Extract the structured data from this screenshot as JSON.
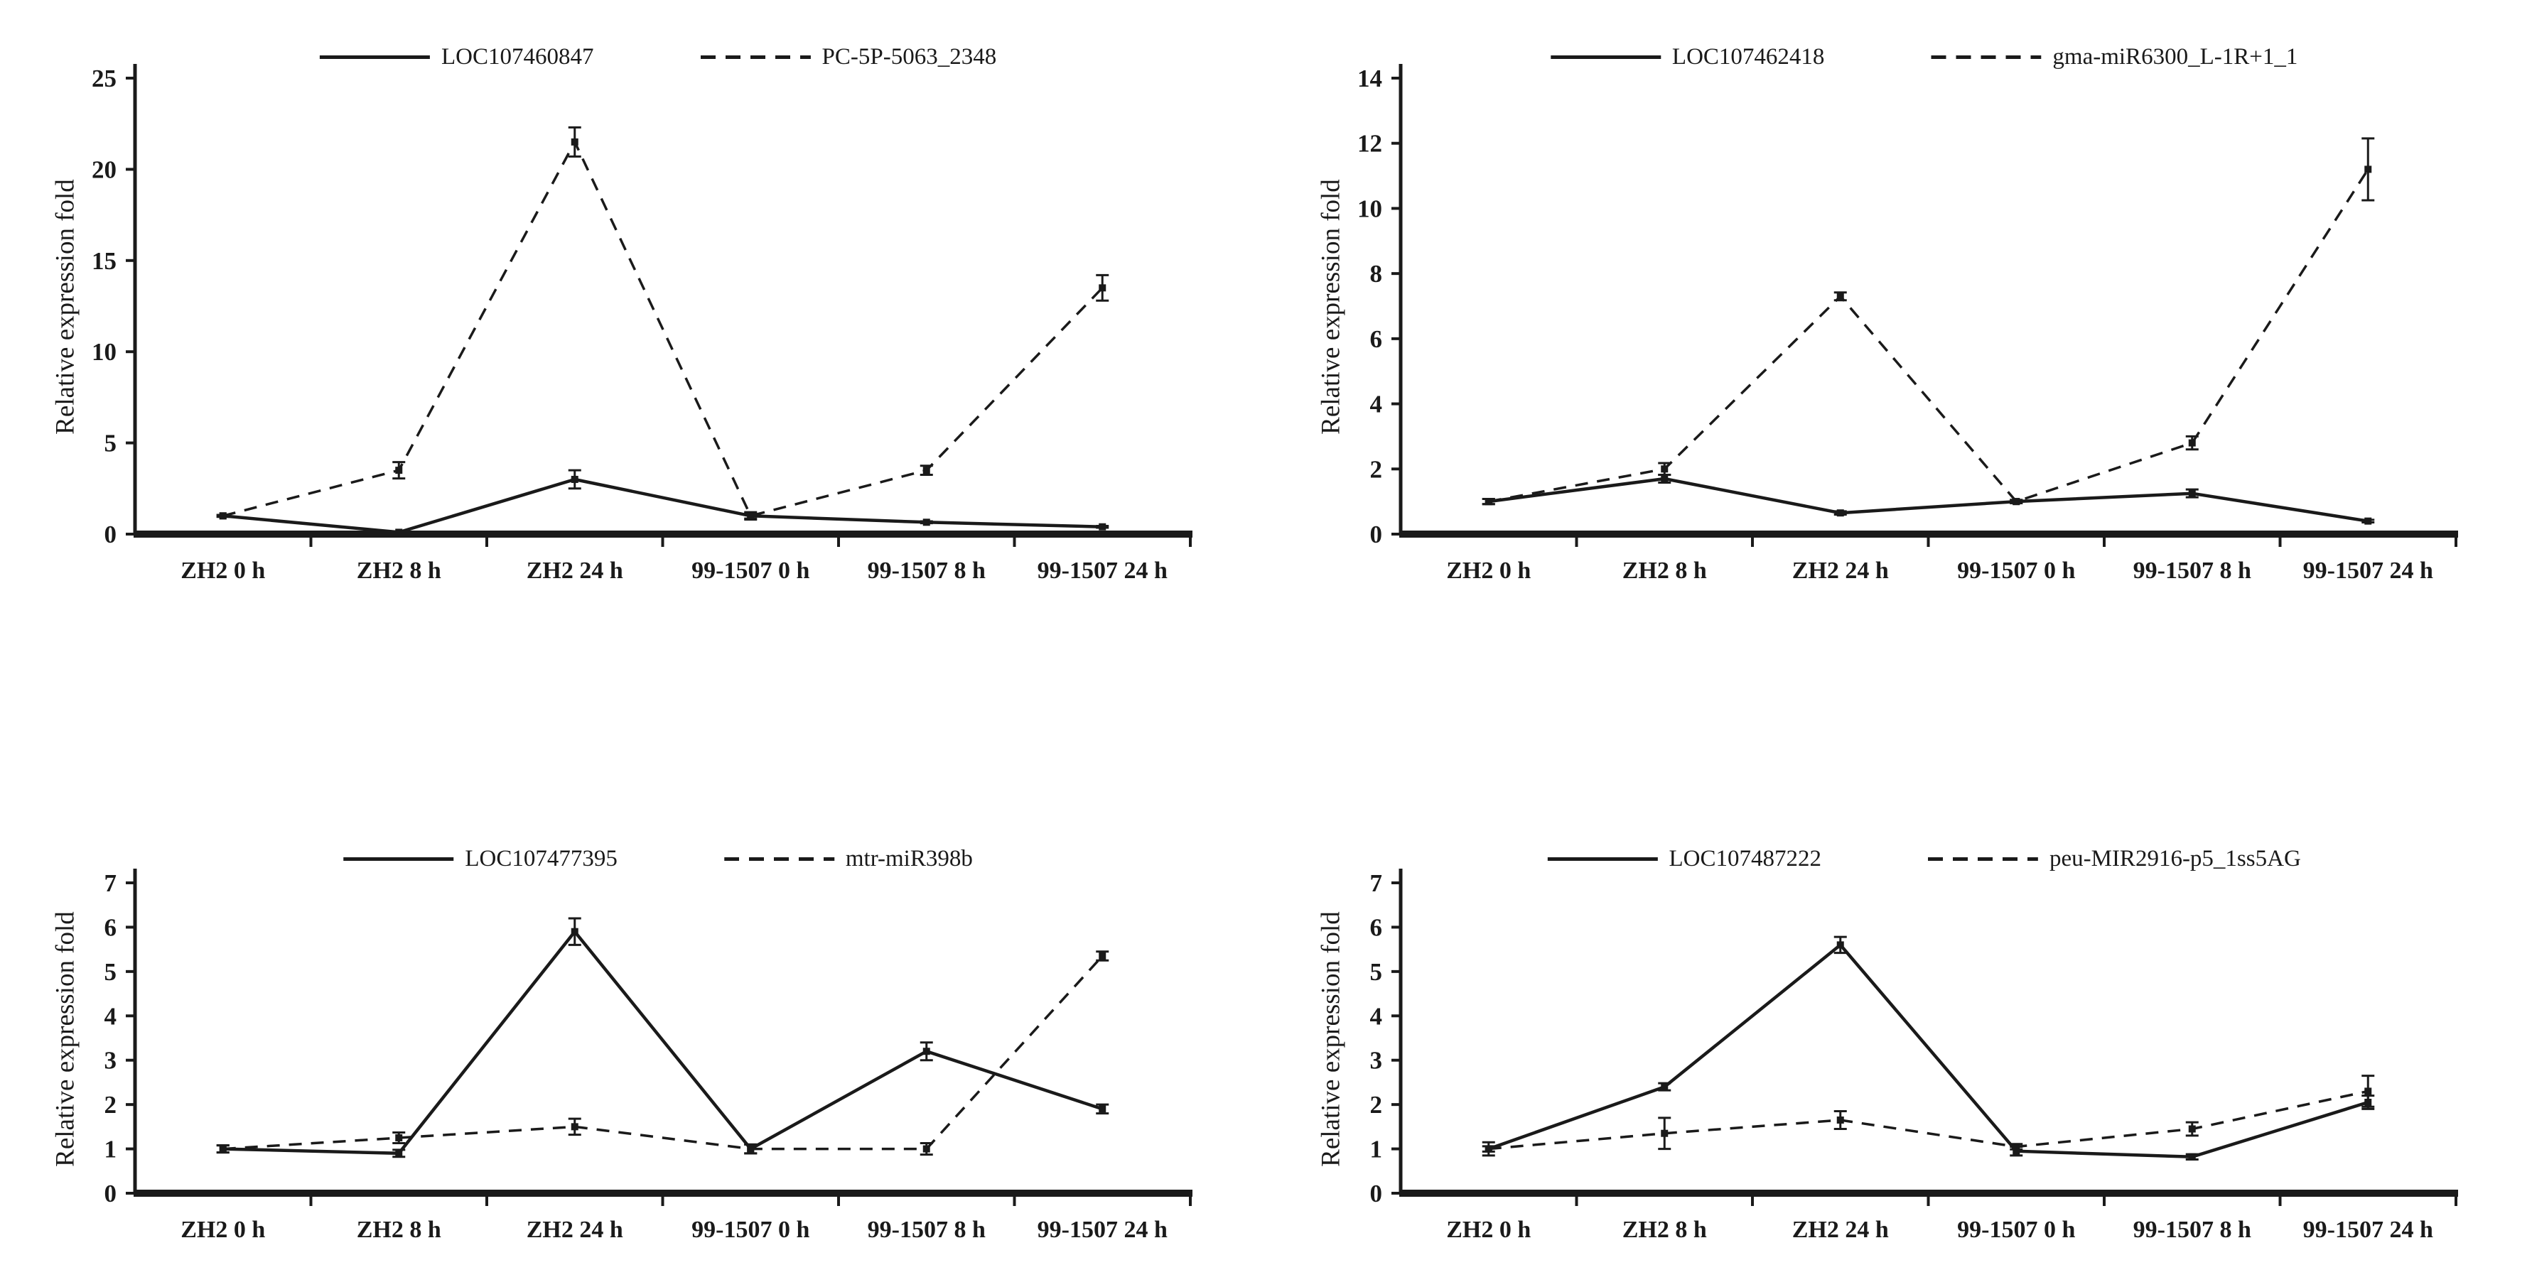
{
  "figure": {
    "background": "#ffffff",
    "ink_color": "#1a1a1a",
    "ylabel": "Relative expression fold",
    "categories": [
      "ZH2 0 h",
      "ZH2 8 h",
      "ZH2 24 h",
      "99-1507 0 h",
      "99-1507 8 h",
      "99-1507 24 h"
    ]
  },
  "chart_data": [
    {
      "type": "line",
      "panel": "top-left",
      "title": "",
      "xlabel": "",
      "ylabel": "Relative expression fold",
      "categories": [
        "ZH2 0 h",
        "ZH2 8 h",
        "ZH2 24 h",
        "99-1507 0 h",
        "99-1507 8 h",
        "99-1507 24 h"
      ],
      "ylim": [
        0,
        25
      ],
      "ytick_step": 5,
      "grid": false,
      "legend_position": "top",
      "error_bars": true,
      "series": [
        {
          "name": "LOC107460847",
          "line_style": "solid",
          "marker": "square",
          "values": [
            1.0,
            0.1,
            3.0,
            1.0,
            0.65,
            0.4
          ],
          "errors": [
            0.05,
            0.05,
            0.5,
            0.2,
            0.05,
            0.05
          ]
        },
        {
          "name": "PC-5P-5063_2348",
          "line_style": "dashed",
          "marker": "square",
          "values": [
            1.0,
            3.5,
            21.5,
            1.0,
            3.5,
            13.5
          ],
          "errors": [
            0.05,
            0.45,
            0.8,
            0.15,
            0.25,
            0.7
          ]
        }
      ]
    },
    {
      "type": "line",
      "panel": "top-right",
      "title": "",
      "xlabel": "",
      "ylabel": "Relative expression fold",
      "categories": [
        "ZH2 0 h",
        "ZH2 8 h",
        "ZH2 24 h",
        "99-1507 0 h",
        "99-1507 8 h",
        "99-1507 24 h"
      ],
      "ylim": [
        0,
        14
      ],
      "ytick_step": 2,
      "grid": false,
      "legend_position": "top",
      "error_bars": true,
      "series": [
        {
          "name": "LOC107462418",
          "line_style": "solid",
          "marker": "square",
          "values": [
            1.0,
            1.7,
            0.65,
            1.0,
            1.25,
            0.4
          ],
          "errors": [
            0.08,
            0.12,
            0.05,
            0.05,
            0.12,
            0.04
          ]
        },
        {
          "name": "gma-miR6300_L-1R+1_1",
          "line_style": "dashed",
          "marker": "square",
          "values": [
            1.0,
            2.0,
            7.3,
            1.0,
            2.8,
            11.2
          ],
          "errors": [
            0.08,
            0.18,
            0.12,
            0.05,
            0.2,
            0.95
          ]
        }
      ]
    },
    {
      "type": "line",
      "panel": "bottom-left",
      "title": "",
      "xlabel": "",
      "ylabel": "Relative expression fold",
      "categories": [
        "ZH2 0 h",
        "ZH2 8 h",
        "ZH2 24 h",
        "99-1507 0 h",
        "99-1507 8 h",
        "99-1507 24 h"
      ],
      "ylim": [
        0,
        7
      ],
      "ytick_step": 1,
      "grid": false,
      "legend_position": "top",
      "error_bars": true,
      "series": [
        {
          "name": "LOC107477395",
          "line_style": "solid",
          "marker": "square",
          "values": [
            1.0,
            0.9,
            5.9,
            1.0,
            3.2,
            1.9
          ],
          "errors": [
            0.08,
            0.08,
            0.3,
            0.1,
            0.2,
            0.1
          ]
        },
        {
          "name": "mtr-miR398b",
          "line_style": "dashed",
          "marker": "square",
          "values": [
            1.0,
            1.25,
            1.5,
            1.0,
            1.0,
            5.35
          ],
          "errors": [
            0.08,
            0.12,
            0.18,
            0.1,
            0.13,
            0.1
          ]
        }
      ]
    },
    {
      "type": "line",
      "panel": "bottom-right",
      "title": "",
      "xlabel": "",
      "ylabel": "Relative expression fold",
      "categories": [
        "ZH2 0 h",
        "ZH2 8 h",
        "ZH2 24 h",
        "99-1507 0 h",
        "99-1507 8 h",
        "99-1507 24 h"
      ],
      "ylim": [
        0,
        7
      ],
      "ytick_step": 1,
      "grid": false,
      "legend_position": "top",
      "error_bars": true,
      "series": [
        {
          "name": "LOC107487222",
          "line_style": "solid",
          "marker": "square",
          "values": [
            1.0,
            2.4,
            5.6,
            0.95,
            0.82,
            2.05
          ],
          "errors": [
            0.15,
            0.08,
            0.18,
            0.1,
            0.06,
            0.15
          ]
        },
        {
          "name": "peu-MIR2916-p5_1ss5AG",
          "line_style": "dashed",
          "marker": "square",
          "values": [
            1.0,
            1.35,
            1.65,
            1.05,
            1.45,
            2.3
          ],
          "errors": [
            0.06,
            0.35,
            0.2,
            0.06,
            0.15,
            0.35
          ]
        }
      ]
    }
  ]
}
